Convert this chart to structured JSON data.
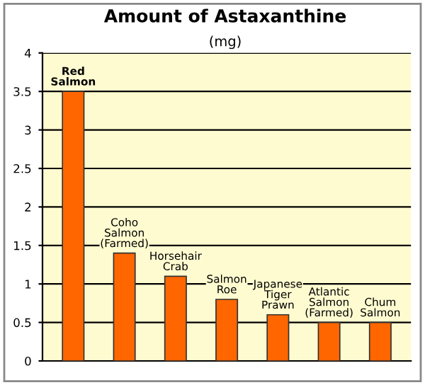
{
  "chart_data": {
    "type": "bar",
    "title": "Amount of Astaxanthine",
    "subtitle": "(mg)",
    "categories": [
      "Red Salmon",
      "Coho Salmon (Farmed)",
      "Horsehair Crab",
      "Salmon Roe",
      "Japanese Tiger Prawn",
      "Atlantic Salmon (Farmed)",
      "Chum Salmon"
    ],
    "values": [
      3.5,
      1.4,
      1.1,
      0.8,
      0.6,
      0.5,
      0.5
    ],
    "color": "#ff6600",
    "ylim": [
      0,
      4
    ],
    "yticks": [
      0,
      0.5,
      1,
      1.5,
      2,
      2.5,
      3,
      3.5,
      4
    ],
    "grid": "y"
  }
}
